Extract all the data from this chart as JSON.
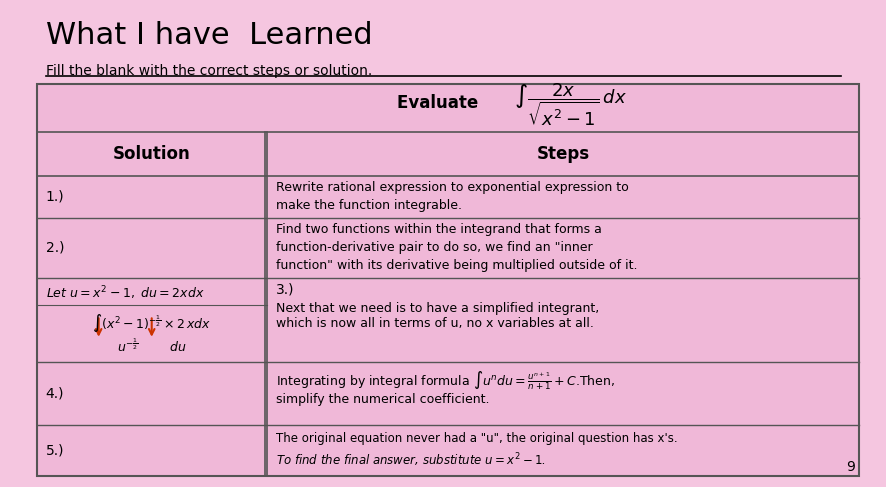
{
  "title": "What I have  Learned",
  "subtitle": "Fill the blank with the correct steps or solution.",
  "evaluate_label": "Evaluate",
  "bg_color": "#f5c6e0",
  "table_bg": "#f0b8d8",
  "border_color": "#555555",
  "header_solution": "Solution",
  "header_steps": "Steps",
  "rows": [
    {
      "solution": "1.)",
      "steps": "Rewrite rational expression to exponential expression to\nmake the function integrable."
    },
    {
      "solution": "2.)",
      "steps": "Find two functions within the integrand that forms a\nfunction-derivative pair to do so, we find an \"inner\nfunction\" with its derivative being multiplied outside of it."
    },
    {
      "solution": "let_u",
      "steps": "3.)\nNext that we need is to have a simplified integrant,\nwhich is now all in terms of u, no x variables at all."
    },
    {
      "solution": "4.)",
      "steps": "Integrating by integral formula ∫uⁿdu = uⁿ⁺¹/(n+1) + C.Then,\nsimplify the numerical coefficient."
    },
    {
      "solution": "5.)",
      "steps": "The original equation never had a \"u\", the original question has x's.\nTo find the final answer, substitute u = x² − 1 ."
    }
  ]
}
